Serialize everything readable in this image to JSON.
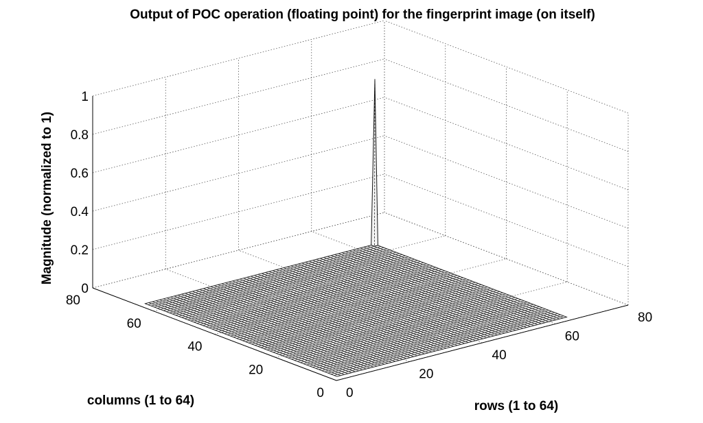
{
  "chart_data": {
    "type": "surface",
    "title": "Output of POC operation (floating point) for the fingerprint image (on itself)",
    "zlabel": "Magnitude (normalized to 1)",
    "ylabel": "columns (1 to 64)",
    "xlabel": "rows (1 to 64)",
    "x_ticks": [
      0,
      20,
      40,
      60,
      80
    ],
    "y_ticks": [
      0,
      20,
      40,
      60,
      80
    ],
    "z_ticks": [
      0,
      0.2,
      0.4,
      0.6,
      0.8,
      1
    ],
    "x_tick_labels": [
      "0",
      "20",
      "40",
      "60",
      "80"
    ],
    "y_tick_labels": [
      "0",
      "20",
      "40",
      "60",
      "80"
    ],
    "z_tick_labels": [
      "0",
      "0.2",
      "0.4",
      "0.6",
      "0.8",
      "1"
    ],
    "xlim": [
      0,
      80
    ],
    "ylim": [
      0,
      80
    ],
    "zlim": [
      0,
      1
    ],
    "grid": true,
    "surface": {
      "grid_size": 64,
      "baseline_magnitude": 0.01,
      "peak": {
        "x": 64,
        "y": 64,
        "z": 0.87
      }
    }
  }
}
